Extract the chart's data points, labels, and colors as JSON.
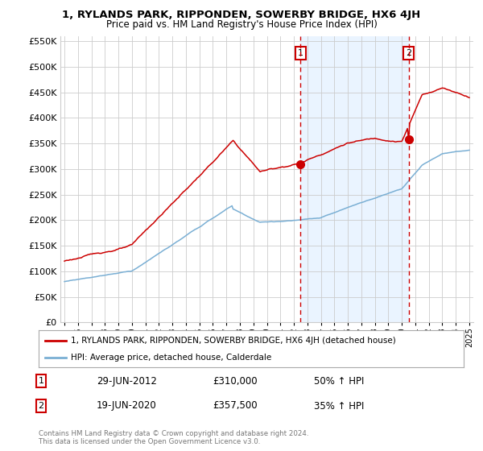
{
  "title": "1, RYLANDS PARK, RIPPONDEN, SOWERBY BRIDGE, HX6 4JH",
  "subtitle": "Price paid vs. HM Land Registry's House Price Index (HPI)",
  "red_label": "1, RYLANDS PARK, RIPPONDEN, SOWERBY BRIDGE, HX6 4JH (detached house)",
  "blue_label": "HPI: Average price, detached house, Calderdale",
  "annotation1": {
    "num": "1",
    "date": "29-JUN-2012",
    "price": "£310,000",
    "change": "50% ↑ HPI"
  },
  "annotation2": {
    "num": "2",
    "date": "19-JUN-2020",
    "price": "£357,500",
    "change": "35% ↑ HPI"
  },
  "vline1_x": 2012.5,
  "vline2_x": 2020.5,
  "marker1_red_y": 310000,
  "marker2_red_y": 357500,
  "ylim": [
    0,
    560000
  ],
  "xlim": [
    1994.7,
    2025.3
  ],
  "yticks": [
    0,
    50000,
    100000,
    150000,
    200000,
    250000,
    300000,
    350000,
    400000,
    450000,
    500000,
    550000
  ],
  "footer": "Contains HM Land Registry data © Crown copyright and database right 2024.\nThis data is licensed under the Open Government Licence v3.0.",
  "bg_color": "#ffffff",
  "grid_color": "#cccccc",
  "red_color": "#cc0000",
  "blue_color": "#7aafd4",
  "shade_color": "#ddeeff"
}
